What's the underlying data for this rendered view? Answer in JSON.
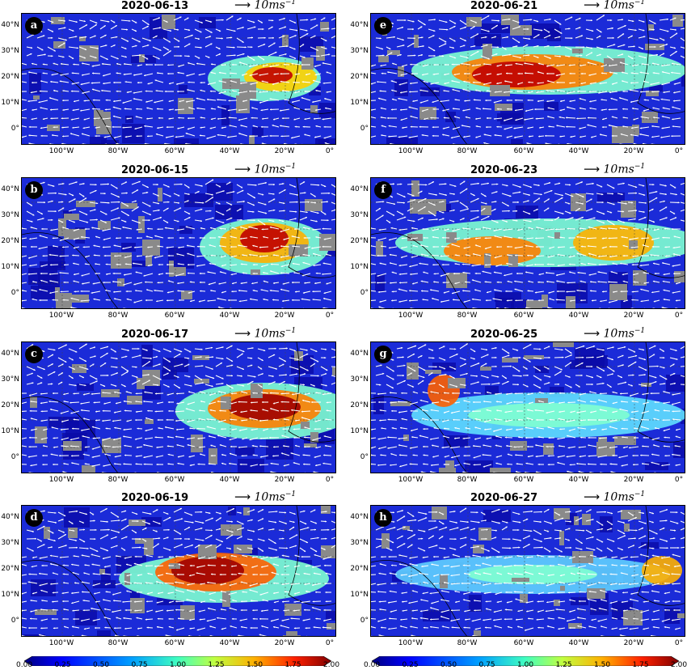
{
  "wind_reference": {
    "arrow": "⟶",
    "label": "10ms",
    "exp": "−1"
  },
  "panels": [
    {
      "letter": "a",
      "date": "2020-06-13"
    },
    {
      "letter": "b",
      "date": "2020-06-15"
    },
    {
      "letter": "c",
      "date": "2020-06-17"
    },
    {
      "letter": "d",
      "date": "2020-06-19"
    },
    {
      "letter": "e",
      "date": "2020-06-21"
    },
    {
      "letter": "f",
      "date": "2020-06-23"
    },
    {
      "letter": "g",
      "date": "2020-06-25"
    },
    {
      "letter": "h",
      "date": "2020-06-27"
    }
  ],
  "axes": {
    "lat_labels": [
      "40°N",
      "30°N",
      "20°N",
      "10°N",
      "0°"
    ],
    "lon_labels": [
      "100°W",
      "80°W",
      "60°W",
      "40°W",
      "20°W",
      "0°"
    ]
  },
  "colorbar": {
    "ticks": [
      "0.00",
      "0.25",
      "0.50",
      "0.75",
      "1.00",
      "1.25",
      "1.50",
      "1.75",
      "2.00"
    ],
    "colors": [
      "#00007f",
      "#0000ff",
      "#007fff",
      "#00ffff",
      "#7fff7f",
      "#ffff00",
      "#ff7f00",
      "#ff0000",
      "#7f0000"
    ]
  }
}
